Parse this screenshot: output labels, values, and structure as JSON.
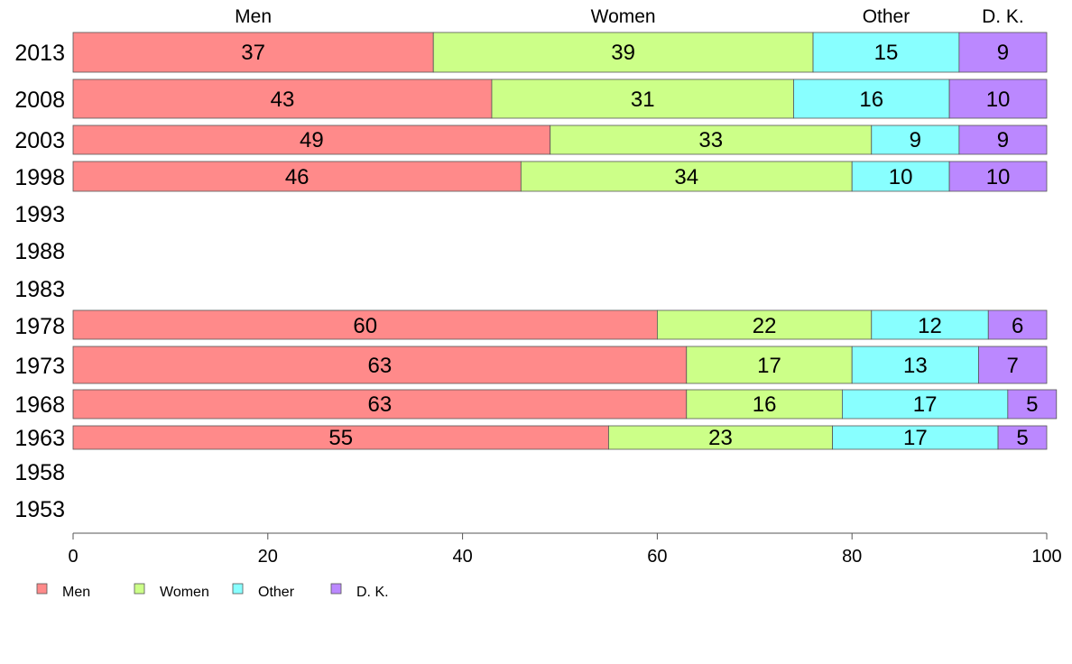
{
  "chart_data": {
    "type": "bar",
    "orientation": "horizontal",
    "stacked": true,
    "categories": [
      "2013",
      "2008",
      "2003",
      "1998",
      "1993",
      "1988",
      "1983",
      "1978",
      "1973",
      "1968",
      "1963",
      "1958",
      "1953"
    ],
    "series": [
      {
        "name": "Men",
        "color": "#FF8A8A",
        "values": [
          37,
          43,
          49,
          46,
          null,
          null,
          null,
          60,
          63,
          63,
          55,
          null,
          null
        ]
      },
      {
        "name": "Women",
        "color": "#CCFF88",
        "values": [
          39,
          31,
          33,
          34,
          null,
          null,
          null,
          22,
          17,
          16,
          23,
          null,
          null
        ]
      },
      {
        "name": "Other",
        "color": "#88FFFF",
        "values": [
          15,
          16,
          9,
          10,
          null,
          null,
          null,
          12,
          13,
          17,
          17,
          null,
          null
        ]
      },
      {
        "name": "D. K.",
        "color": "#BB88FF",
        "values": [
          9,
          10,
          9,
          10,
          null,
          null,
          null,
          6,
          7,
          5,
          5,
          null,
          null
        ]
      }
    ],
    "top_labels": [
      "Men",
      "Women",
      "Other",
      "D. K."
    ],
    "xlim": [
      0,
      100
    ],
    "xticks": [
      "0",
      "20",
      "40",
      "60",
      "80",
      "100"
    ],
    "grid": false,
    "legend_position": "bottom-left",
    "xlabel": "",
    "ylabel": ""
  }
}
